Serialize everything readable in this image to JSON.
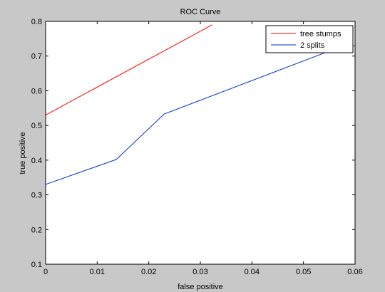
{
  "chart_data": {
    "type": "line",
    "title": "ROC Curve",
    "xlabel": "false positive",
    "ylabel": "true positive",
    "xlim": [
      0,
      0.06
    ],
    "ylim": [
      0.1,
      0.8
    ],
    "xticks": [
      "0",
      "0.01",
      "0.02",
      "0.03",
      "0.04",
      "0.05",
      "0.06"
    ],
    "yticks": [
      "0.1",
      "0.2",
      "0.3",
      "0.4",
      "0.5",
      "0.6",
      "0.7",
      "0.8"
    ],
    "grid": false,
    "legend_position": "top-right",
    "series": [
      {
        "name": "tree stumps",
        "color": "#ff0000",
        "points": [
          [
            0,
            0.1
          ],
          [
            0,
            0.53
          ],
          [
            0.0323,
            0.79
          ]
        ]
      },
      {
        "name": "2 splits",
        "color": "#0033cc",
        "points": [
          [
            0,
            0.33
          ],
          [
            0.0137,
            0.402
          ],
          [
            0.023,
            0.533
          ],
          [
            0.056,
            0.72
          ],
          [
            0.06,
            0.73
          ]
        ]
      }
    ]
  },
  "colors": {
    "figure_background": "#c8c8c8",
    "axes_background": "#ffffff",
    "axes_color": "#000000"
  }
}
